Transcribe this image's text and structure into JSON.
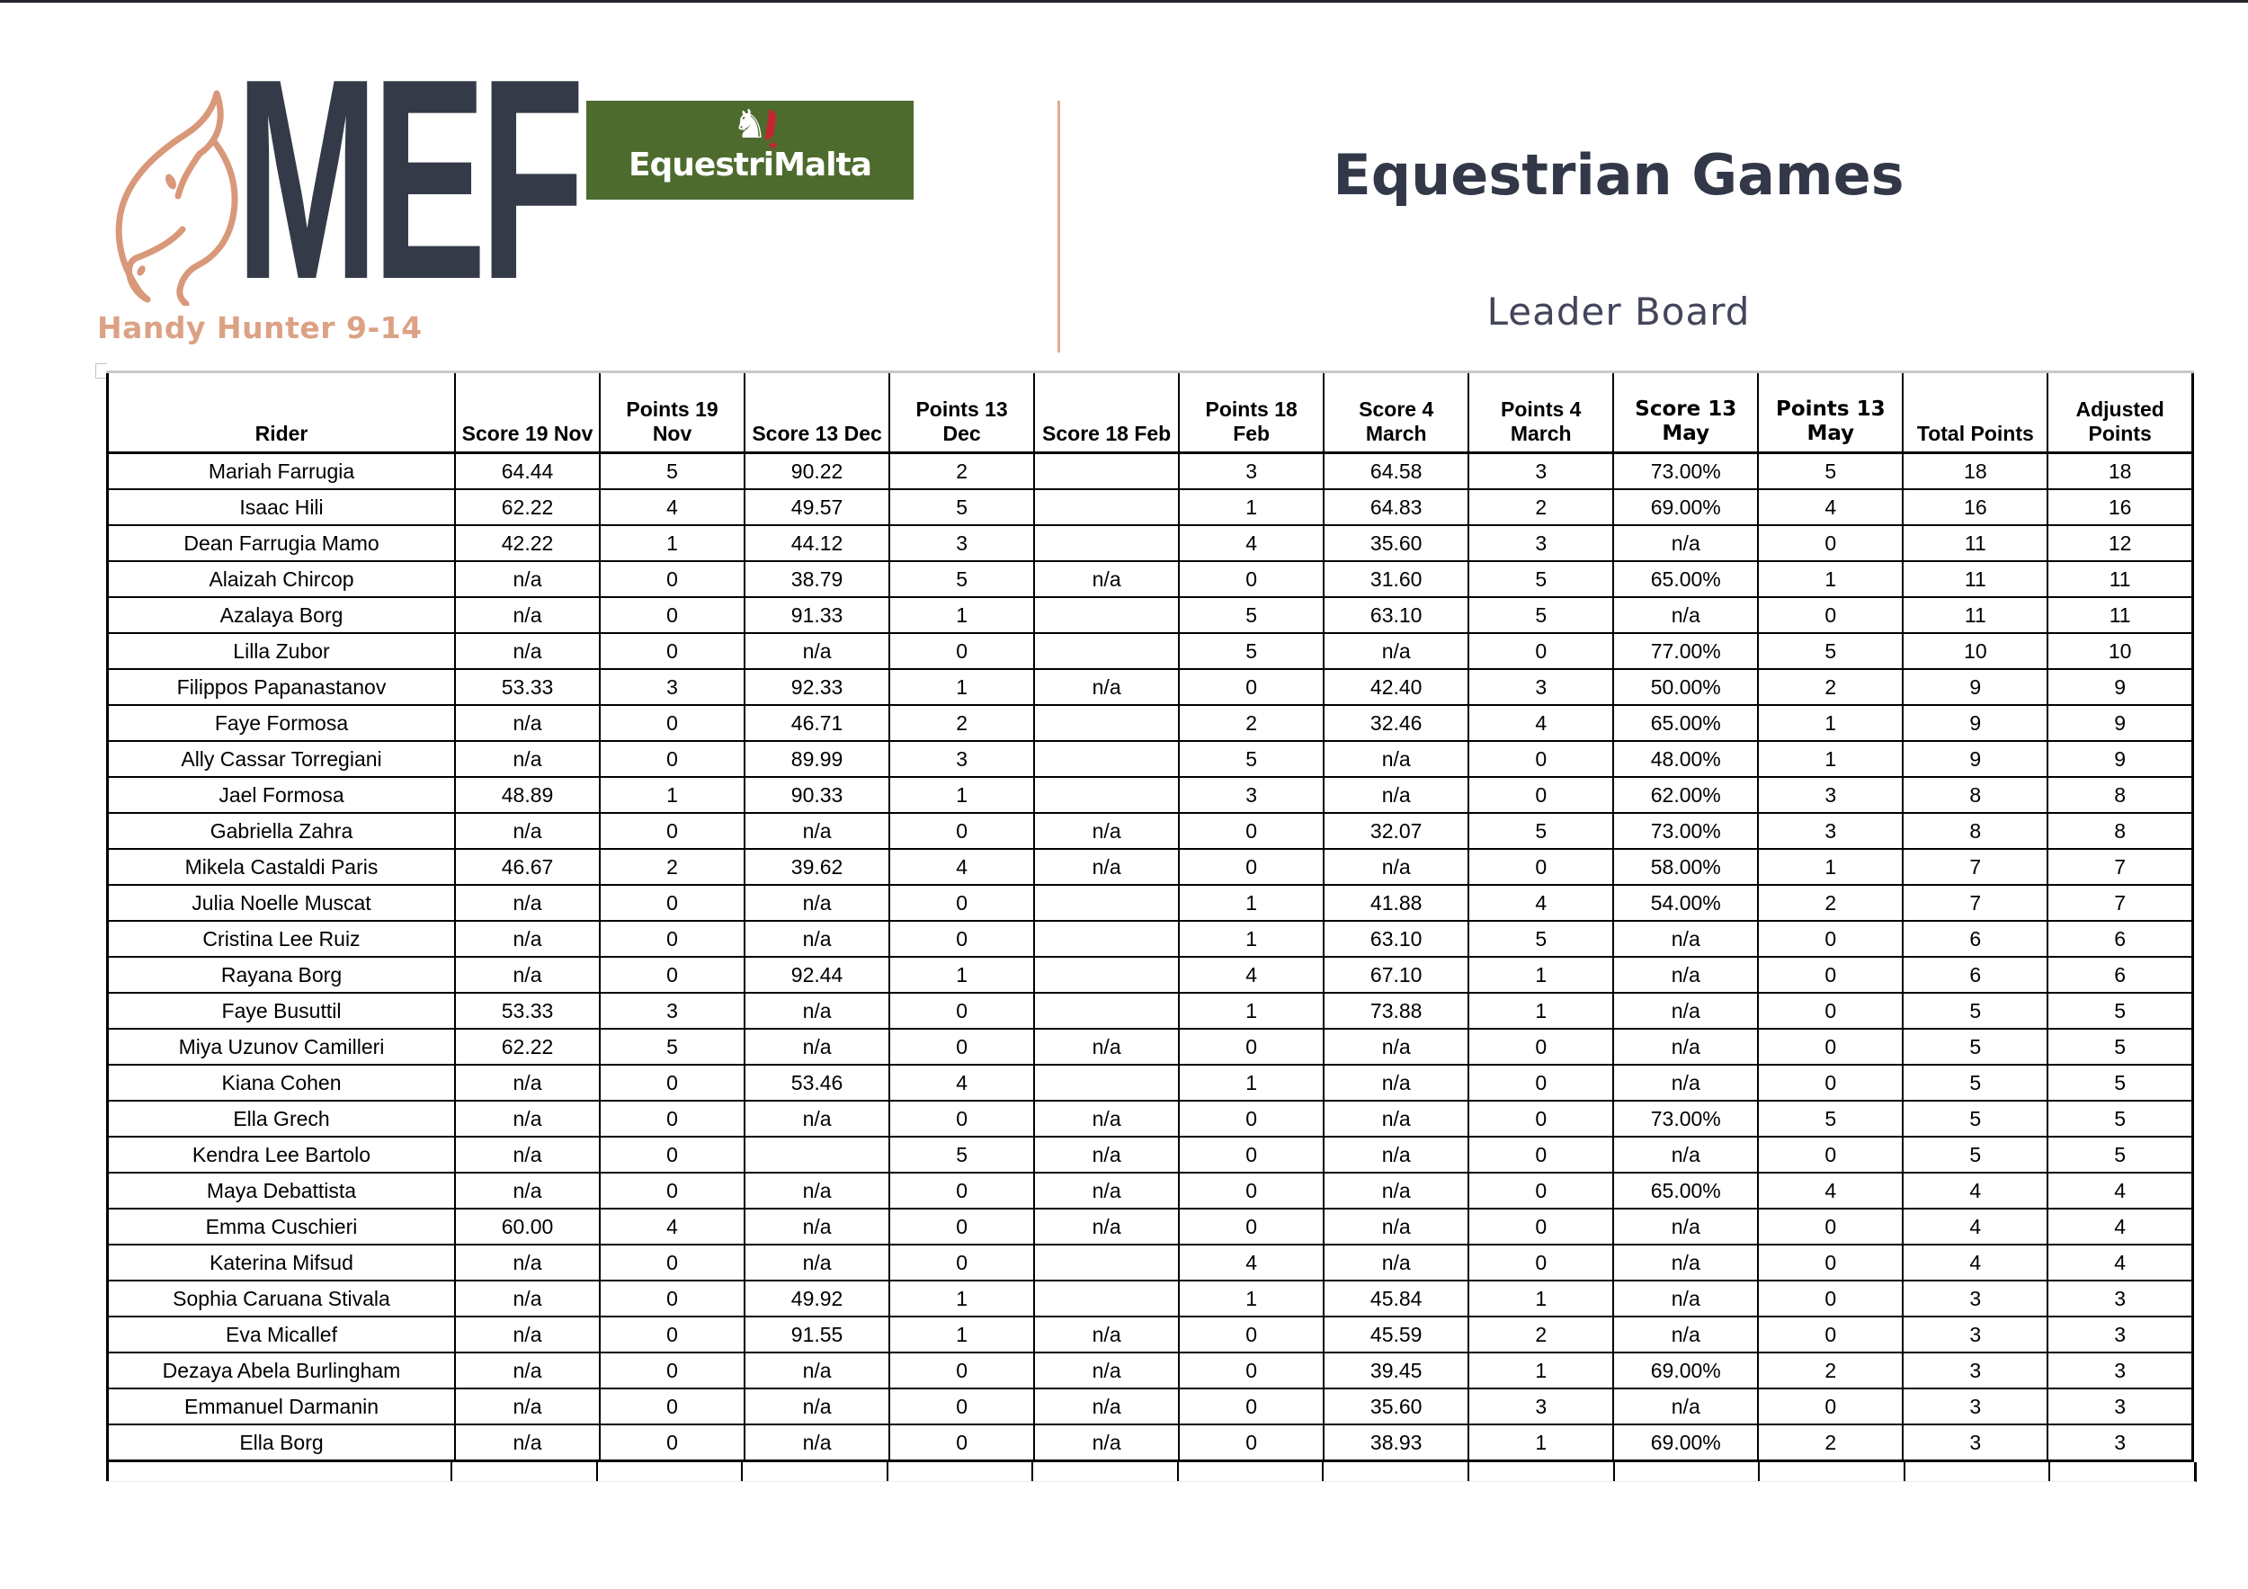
{
  "header": {
    "mef_logo_text": "MEF",
    "badge_text": "EquestriMalta",
    "badge_horse_glyph": "♞",
    "badge_cross_glyph": "✚",
    "tagline": "Handy Hunter 9-14",
    "title": "Equestrian Games",
    "subtitle": "Leader Board"
  },
  "colors": {
    "accent_salmon": "#dca285",
    "navy": "#323848",
    "badge_green": "#4e6b2e",
    "badge_red": "#c3272e"
  },
  "table": {
    "columns": [
      {
        "key": "rider",
        "label": "Rider"
      },
      {
        "key": "score-19-nov",
        "label": "Score 19 Nov"
      },
      {
        "key": "points-19-nov",
        "label": "Points 19\nNov"
      },
      {
        "key": "score-13-dec",
        "label": "Score 13 Dec"
      },
      {
        "key": "points-13-dec",
        "label": "Points 13\nDec"
      },
      {
        "key": "score-18-feb",
        "label": "Score 18 Feb"
      },
      {
        "key": "points-18-feb",
        "label": "Points 18\nFeb"
      },
      {
        "key": "score-4-march",
        "label": "Score 4\nMarch"
      },
      {
        "key": "points-4-march",
        "label": "Points 4\nMarch"
      },
      {
        "key": "score-13-may",
        "label": "Score 13\nMay"
      },
      {
        "key": "points-13-may",
        "label": "Points 13\nMay"
      },
      {
        "key": "total-points",
        "label": "Total Points"
      },
      {
        "key": "adjusted-points",
        "label": "Adjusted\nPoints"
      }
    ],
    "rows": [
      {
        "large": false,
        "cells": [
          "Mariah Farrugia",
          "64.44",
          "5",
          "90.22",
          "2",
          "",
          "3",
          "64.58",
          "3",
          "73.00%",
          "5",
          "18",
          "18"
        ]
      },
      {
        "large": false,
        "cells": [
          "Isaac Hili",
          "62.22",
          "4",
          "49.57",
          "5",
          "",
          "1",
          "64.83",
          "2",
          "69.00%",
          "4",
          "16",
          "16"
        ]
      },
      {
        "large": false,
        "cells": [
          "Dean Farrugia Mamo",
          "42.22",
          "1",
          "44.12",
          "3",
          "",
          "4",
          "35.60",
          "3",
          "n/a",
          "0",
          "11",
          "12"
        ]
      },
      {
        "large": false,
        "cells": [
          "Alaizah Chircop",
          "n/a",
          "0",
          "38.79",
          "5",
          "n/a",
          "0",
          "31.60",
          "5",
          "65.00%",
          "1",
          "11",
          "11"
        ]
      },
      {
        "large": false,
        "cells": [
          "Azalaya Borg",
          "n/a",
          "0",
          "91.33",
          "1",
          "",
          "5",
          "63.10",
          "5",
          "n/a",
          "0",
          "11",
          "11"
        ]
      },
      {
        "large": false,
        "cells": [
          "Lilla Zubor",
          "n/a",
          "0",
          "n/a",
          "0",
          "",
          "5",
          "n/a",
          "0",
          "77.00%",
          "5",
          "10",
          "10"
        ]
      },
      {
        "large": false,
        "cells": [
          "Filippos Papanastanov",
          "53.33",
          "3",
          "92.33",
          "1",
          "n/a",
          "0",
          "42.40",
          "3",
          "50.00%",
          "2",
          "9",
          "9"
        ]
      },
      {
        "large": false,
        "cells": [
          "Faye Formosa",
          "n/a",
          "0",
          "46.71",
          "2",
          "",
          "2",
          "32.46",
          "4",
          "65.00%",
          "1",
          "9",
          "9"
        ]
      },
      {
        "large": false,
        "cells": [
          "Ally Cassar Torregiani",
          "n/a",
          "0",
          "89.99",
          "3",
          "",
          "5",
          "n/a",
          "0",
          "48.00%",
          "1",
          "9",
          "9"
        ]
      },
      {
        "large": false,
        "cells": [
          "Jael Formosa",
          "48.89",
          "1",
          "90.33",
          "1",
          "",
          "3",
          "n/a",
          "0",
          "62.00%",
          "3",
          "8",
          "8"
        ]
      },
      {
        "large": false,
        "cells": [
          "Gabriella Zahra",
          "n/a",
          "0",
          "n/a",
          "0",
          "n/a",
          "0",
          "32.07",
          "5",
          "73.00%",
          "3",
          "8",
          "8"
        ]
      },
      {
        "large": false,
        "cells": [
          "Mikela Castaldi Paris",
          "46.67",
          "2",
          "39.62",
          "4",
          "n/a",
          "0",
          "n/a",
          "0",
          "58.00%",
          "1",
          "7",
          "7"
        ]
      },
      {
        "large": false,
        "cells": [
          "Julia Noelle Muscat",
          "n/a",
          "0",
          "n/a",
          "0",
          "",
          "1",
          "41.88",
          "4",
          "54.00%",
          "2",
          "7",
          "7"
        ]
      },
      {
        "large": false,
        "cells": [
          "Cristina Lee Ruiz",
          "n/a",
          "0",
          "n/a",
          "0",
          "",
          "1",
          "63.10",
          "5",
          "n/a",
          "0",
          "6",
          "6"
        ]
      },
      {
        "large": false,
        "cells": [
          "Rayana Borg",
          "n/a",
          "0",
          "92.44",
          "1",
          "",
          "4",
          "67.10",
          "1",
          "n/a",
          "0",
          "6",
          "6"
        ]
      },
      {
        "large": false,
        "cells": [
          "Faye Busuttil",
          "53.33",
          "3",
          "n/a",
          "0",
          "",
          "1",
          "73.88",
          "1",
          "n/a",
          "0",
          "5",
          "5"
        ]
      },
      {
        "large": false,
        "cells": [
          "Miya Uzunov Camilleri",
          "62.22",
          "5",
          "n/a",
          "0",
          "n/a",
          "0",
          "n/a",
          "0",
          "n/a",
          "0",
          "5",
          "5"
        ]
      },
      {
        "large": false,
        "cells": [
          "Kiana Cohen",
          "n/a",
          "0",
          "53.46",
          "4",
          "",
          "1",
          "n/a",
          "0",
          "n/a",
          "0",
          "5",
          "5"
        ]
      },
      {
        "large": true,
        "cells": [
          "Ella Grech",
          "n/a",
          "0",
          "n/a",
          "0",
          "n/a",
          "0",
          "n/a",
          "0",
          "73.00%",
          "5",
          "5",
          "5"
        ]
      },
      {
        "large": false,
        "cells": [
          "Kendra Lee Bartolo",
          "n/a",
          "0",
          "",
          "5",
          "n/a",
          "0",
          "n/a",
          "0",
          "n/a",
          "0",
          "5",
          "5"
        ]
      },
      {
        "large": true,
        "cells": [
          "Maya Debattista",
          "n/a",
          "0",
          "n/a",
          "0",
          "n/a",
          "0",
          "n/a",
          "0",
          "65.00%",
          "4",
          "4",
          "4"
        ]
      },
      {
        "large": false,
        "cells": [
          "Emma Cuschieri",
          "60.00",
          "4",
          "n/a",
          "0",
          "n/a",
          "0",
          "n/a",
          "0",
          "n/a",
          "0",
          "4",
          "4"
        ]
      },
      {
        "large": false,
        "cells": [
          "Katerina Mifsud",
          "n/a",
          "0",
          "n/a",
          "0",
          "",
          "4",
          "n/a",
          "0",
          "n/a",
          "0",
          "4",
          "4"
        ]
      },
      {
        "large": false,
        "cells": [
          "Sophia Caruana Stivala",
          "n/a",
          "0",
          "49.92",
          "1",
          "",
          "1",
          "45.84",
          "1",
          "n/a",
          "0",
          "3",
          "3"
        ]
      },
      {
        "large": false,
        "cells": [
          "Eva Micallef",
          "n/a",
          "0",
          "91.55",
          "1",
          "n/a",
          "0",
          "45.59",
          "2",
          "n/a",
          "0",
          "3",
          "3"
        ]
      },
      {
        "large": false,
        "cells": [
          "Dezaya Abela Burlingham",
          "n/a",
          "0",
          "n/a",
          "0",
          "n/a",
          "0",
          "39.45",
          "1",
          "69.00%",
          "2",
          "3",
          "3"
        ]
      },
      {
        "large": false,
        "cells": [
          "Emmanuel Darmanin",
          "n/a",
          "0",
          "n/a",
          "0",
          "n/a",
          "0",
          "35.60",
          "3",
          "n/a",
          "0",
          "3",
          "3"
        ]
      },
      {
        "large": false,
        "cells": [
          "Ella Borg",
          "n/a",
          "0",
          "n/a",
          "0",
          "n/a",
          "0",
          "38.93",
          "1",
          "69.00%",
          "2",
          "3",
          "3"
        ]
      }
    ]
  }
}
